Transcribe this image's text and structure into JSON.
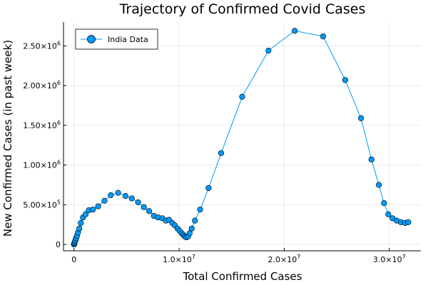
{
  "chart_data": {
    "type": "line",
    "title": "Trajectory of Confirmed Covid Cases",
    "xlabel": "Total Confirmed Cases",
    "ylabel": "New Confirmed Cases (in past week)",
    "xlim": [
      -1000000,
      33000000
    ],
    "ylim": [
      -80000,
      2800000
    ],
    "xticks": [
      {
        "value": 0,
        "mant": "0",
        "exp": ""
      },
      {
        "value": 10000000,
        "mant": "1.0×10",
        "exp": "7"
      },
      {
        "value": 20000000,
        "mant": "2.0×10",
        "exp": "7"
      },
      {
        "value": 30000000,
        "mant": "3.0×10",
        "exp": "7"
      }
    ],
    "yticks": [
      {
        "value": 0,
        "mant": "0",
        "exp": ""
      },
      {
        "value": 500000,
        "mant": "5.00×10",
        "exp": "5"
      },
      {
        "value": 1000000,
        "mant": "1.00×10",
        "exp": "6"
      },
      {
        "value": 1500000,
        "mant": "1.50×10",
        "exp": "6"
      },
      {
        "value": 2000000,
        "mant": "2.00×10",
        "exp": "6"
      },
      {
        "value": 2500000,
        "mant": "2.50×10",
        "exp": "6"
      }
    ],
    "grid": true,
    "legend_position": "top-left",
    "colors": {
      "series": "#009AFA",
      "marker_edge": "#000000",
      "grid": "#E5E5E5",
      "axis": "#000000"
    },
    "series": [
      {
        "name": "India Data",
        "x": [
          0,
          20000,
          50000,
          90000,
          140000,
          200000,
          280000,
          380000,
          500000,
          650000,
          850000,
          1100000,
          1400000,
          1800000,
          2300000,
          2900000,
          3500000,
          4200000,
          4900000,
          5500000,
          6100000,
          6650000,
          7150000,
          7600000,
          8000000,
          8400000,
          8750000,
          9050000,
          9350000,
          9600000,
          9850000,
          10050000,
          10250000,
          10400000,
          10550000,
          10700000,
          10850000,
          11000000,
          11200000,
          11500000,
          12000000,
          12800000,
          14000000,
          16000000,
          18500000,
          21000000,
          23700000,
          25800000,
          27300000,
          28300000,
          29000000,
          29500000,
          29900000,
          30300000,
          30700000,
          31100000,
          31500000,
          31800000
        ],
        "y": [
          0,
          10000,
          20000,
          35000,
          55000,
          80000,
          110000,
          150000,
          200000,
          270000,
          340000,
          380000,
          430000,
          440000,
          480000,
          550000,
          620000,
          650000,
          610000,
          580000,
          530000,
          470000,
          420000,
          360000,
          340000,
          330000,
          300000,
          310000,
          270000,
          240000,
          200000,
          170000,
          140000,
          120000,
          100000,
          90000,
          100000,
          140000,
          200000,
          300000,
          440000,
          710000,
          1150000,
          1860000,
          2440000,
          2690000,
          2620000,
          2070000,
          1590000,
          1070000,
          750000,
          520000,
          380000,
          330000,
          300000,
          280000,
          270000,
          280000
        ]
      }
    ]
  }
}
